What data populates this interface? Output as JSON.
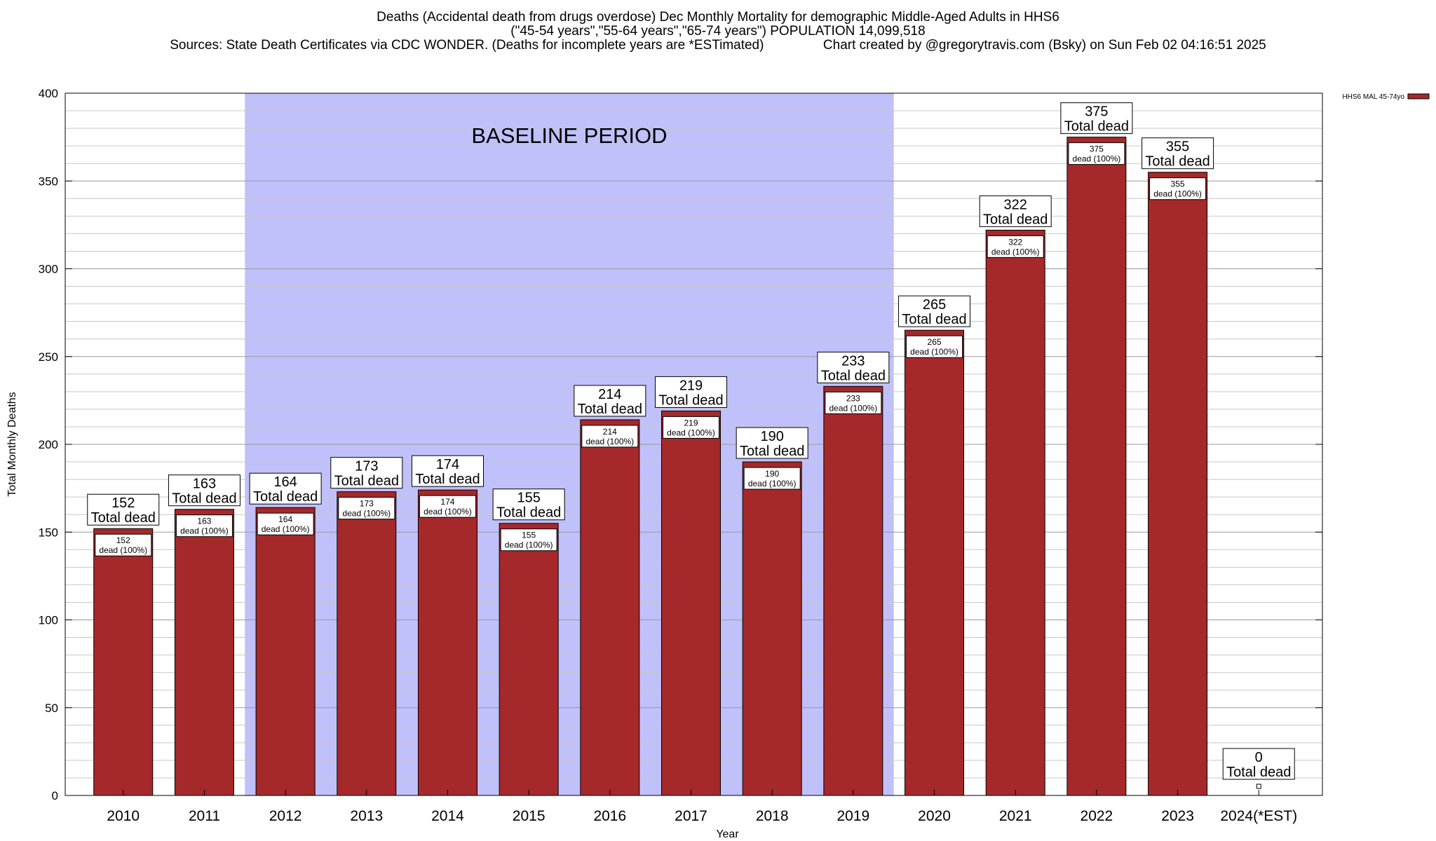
{
  "chart_data": {
    "type": "bar",
    "title_lines": [
      "Deaths (Accidental death from drugs overdose) Dec Monthly Mortality for demographic Middle-Aged Adults in HHS6",
      "(\"45-54 years\",\"55-64 years\",\"65-74 years\") POPULATION 14,099,518",
      "Sources: State Death Certificates via CDC WONDER. (Deaths for incomplete years are *ESTimated)                Chart created by @gregorytravis.com (Bsky) on Sun Feb 02 04:16:51 2025"
    ],
    "xlabel": "Year",
    "ylabel": "Total Monthly Deaths",
    "ylim": [
      0,
      400
    ],
    "yticks": [
      0,
      50,
      100,
      150,
      200,
      250,
      300,
      350,
      400
    ],
    "categories": [
      "2010",
      "2011",
      "2012",
      "2013",
      "2014",
      "2015",
      "2016",
      "2017",
      "2018",
      "2019",
      "2020",
      "2021",
      "2022",
      "2023",
      "2024(*EST)"
    ],
    "series": [
      {
        "name": "HHS6 MAL 45-74yo",
        "values": [
          152,
          163,
          164,
          173,
          174,
          155,
          214,
          219,
          190,
          233,
          265,
          322,
          375,
          355,
          0
        ],
        "color": "#a5292a"
      }
    ],
    "top_labels": [
      "152",
      "163",
      "164",
      "173",
      "174",
      "155",
      "214",
      "219",
      "190",
      "233",
      "265",
      "322",
      "375",
      "355",
      "0"
    ],
    "total_label": "Total dead",
    "inner_label": "dead (100%)",
    "baseline": {
      "label": "BASELINE PERIOD",
      "from": "2012",
      "to": "2019",
      "color": "#c0c0fa"
    },
    "grid": true,
    "legend_position": "top-right"
  }
}
